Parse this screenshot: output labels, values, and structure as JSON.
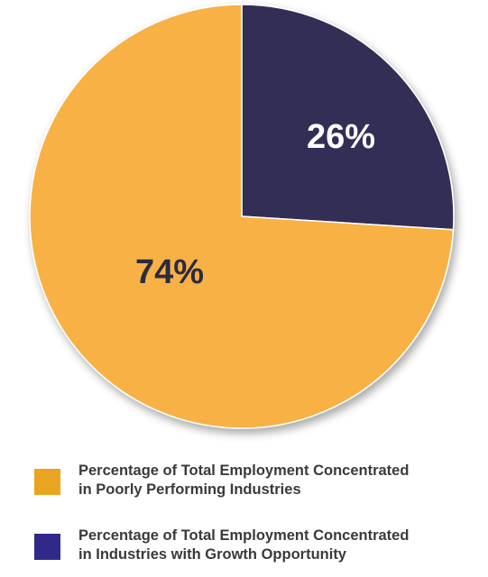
{
  "chart_data": {
    "type": "pie",
    "title": "",
    "slices": [
      {
        "label": "Percentage of Total Employment Concentrated in Poorly Performing Industries",
        "value": 74,
        "display": "74%",
        "color": "#f8b144",
        "label_color": "#2c2b3f"
      },
      {
        "label": "Percentage of Total Employment Concentrated in Industries with Growth Opportunity",
        "value": 26,
        "display": "26%",
        "color": "#332f54",
        "label_color": "#ffffff"
      }
    ],
    "legend": [
      {
        "line1": "Percentage of Total Employment Concentrated",
        "line2": "in Poorly Performing Industries",
        "color": "#e9a51f"
      },
      {
        "line1": "Percentage of Total Employment Concentrated",
        "line2": "in Industries with Growth Opportunity",
        "color": "#2f2a8a"
      }
    ],
    "legend_position": "bottom"
  }
}
